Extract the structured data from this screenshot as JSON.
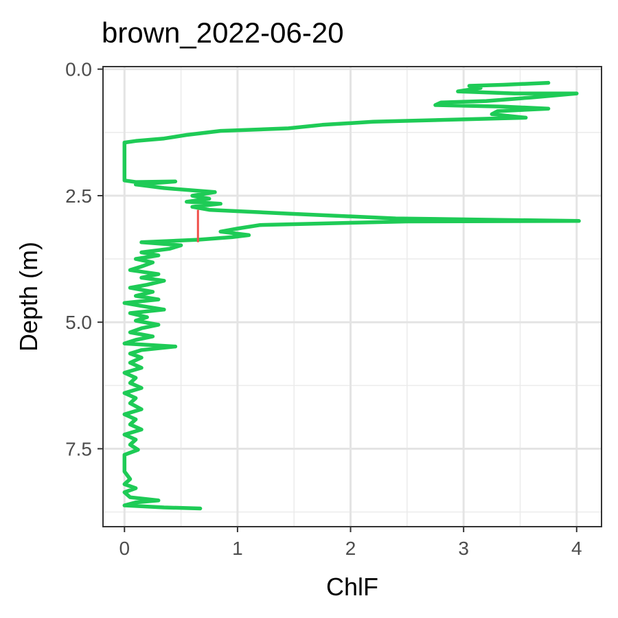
{
  "chart_data": {
    "type": "line",
    "title": "brown_2022-06-20",
    "xlabel": "ChlF",
    "ylabel": "Depth (m)",
    "xlim": [
      -0.19,
      4.22
    ],
    "ylim": [
      9.04,
      -0.05
    ],
    "y_reversed": true,
    "grid": true,
    "legend": "none",
    "x_ticks": [
      {
        "value": 0,
        "label": "0"
      },
      {
        "value": 1,
        "label": "1"
      },
      {
        "value": 2,
        "label": "2"
      },
      {
        "value": 3,
        "label": "3"
      },
      {
        "value": 4,
        "label": "4"
      }
    ],
    "y_ticks": [
      {
        "value": 0,
        "label": "0.0"
      },
      {
        "value": 2.5,
        "label": "2.5"
      },
      {
        "value": 5,
        "label": "5.0"
      },
      {
        "value": 7.5,
        "label": "7.5"
      }
    ],
    "series": [
      {
        "color": "#1ECB56",
        "points": [
          [
            3.75,
            0.27
          ],
          [
            3.35,
            0.31
          ],
          [
            3.05,
            0.33
          ],
          [
            3.15,
            0.37
          ],
          [
            2.95,
            0.44
          ],
          [
            3.45,
            0.48
          ],
          [
            4.0,
            0.48
          ],
          [
            3.6,
            0.56
          ],
          [
            3.2,
            0.63
          ],
          [
            2.8,
            0.66
          ],
          [
            2.75,
            0.71
          ],
          [
            3.35,
            0.74
          ],
          [
            3.75,
            0.78
          ],
          [
            3.3,
            0.83
          ],
          [
            3.25,
            0.89
          ],
          [
            3.55,
            0.96
          ],
          [
            2.2,
            1.04
          ],
          [
            1.75,
            1.1
          ],
          [
            1.45,
            1.17
          ],
          [
            0.85,
            1.22
          ],
          [
            0.55,
            1.3
          ],
          [
            0.35,
            1.37
          ],
          [
            0.1,
            1.42
          ],
          [
            0.0,
            1.45
          ],
          [
            0.0,
            1.8
          ],
          [
            0.0,
            2.2
          ],
          [
            0.1,
            2.23
          ],
          [
            0.45,
            2.22
          ],
          [
            0.1,
            2.28
          ],
          [
            0.35,
            2.35
          ],
          [
            0.8,
            2.43
          ],
          [
            0.6,
            2.5
          ],
          [
            0.75,
            2.56
          ],
          [
            0.55,
            2.62
          ],
          [
            0.85,
            2.66
          ],
          [
            0.6,
            2.72
          ],
          [
            0.75,
            2.78
          ],
          [
            1.5,
            2.86
          ],
          [
            2.4,
            2.95
          ],
          [
            4.02,
            3.0
          ],
          [
            2.5,
            3.01
          ],
          [
            1.2,
            3.08
          ],
          [
            1.0,
            3.15
          ],
          [
            0.85,
            3.21
          ],
          [
            1.1,
            3.28
          ],
          [
            0.95,
            3.32
          ],
          [
            0.65,
            3.37
          ],
          [
            0.15,
            3.42
          ],
          [
            0.5,
            3.48
          ],
          [
            0.4,
            3.55
          ],
          [
            0.15,
            3.62
          ],
          [
            0.3,
            3.68
          ],
          [
            0.1,
            3.75
          ],
          [
            0.25,
            3.82
          ],
          [
            0.15,
            3.9
          ],
          [
            0.05,
            3.97
          ],
          [
            0.3,
            4.05
          ],
          [
            0.15,
            4.12
          ],
          [
            0.35,
            4.18
          ],
          [
            0.2,
            4.26
          ],
          [
            0.05,
            4.32
          ],
          [
            0.25,
            4.4
          ],
          [
            0.1,
            4.48
          ],
          [
            0.3,
            4.55
          ],
          [
            0.0,
            4.62
          ],
          [
            0.15,
            4.68
          ],
          [
            0.35,
            4.75
          ],
          [
            0.05,
            4.82
          ],
          [
            0.2,
            4.9
          ],
          [
            0.1,
            4.97
          ],
          [
            0.3,
            5.05
          ],
          [
            0.15,
            5.12
          ],
          [
            0.05,
            5.2
          ],
          [
            0.25,
            5.28
          ],
          [
            0.1,
            5.35
          ],
          [
            0.0,
            5.42
          ],
          [
            0.45,
            5.48
          ],
          [
            0.15,
            5.55
          ],
          [
            0.05,
            5.62
          ],
          [
            0.15,
            5.7
          ],
          [
            0.05,
            5.8
          ],
          [
            0.15,
            5.9
          ],
          [
            0.0,
            6.0
          ],
          [
            0.1,
            6.1
          ],
          [
            0.05,
            6.2
          ],
          [
            0.15,
            6.3
          ],
          [
            0.0,
            6.4
          ],
          [
            0.1,
            6.5
          ],
          [
            0.05,
            6.6
          ],
          [
            0.15,
            6.72
          ],
          [
            0.0,
            6.82
          ],
          [
            0.1,
            6.92
          ],
          [
            0.05,
            7.02
          ],
          [
            0.15,
            7.12
          ],
          [
            0.0,
            7.22
          ],
          [
            0.1,
            7.32
          ],
          [
            0.05,
            7.42
          ],
          [
            0.12,
            7.52
          ],
          [
            0.0,
            7.62
          ],
          [
            0.0,
            7.75
          ],
          [
            0.0,
            7.95
          ],
          [
            0.05,
            8.1
          ],
          [
            0.0,
            8.2
          ],
          [
            0.1,
            8.28
          ],
          [
            0.0,
            8.36
          ],
          [
            0.05,
            8.46
          ],
          [
            0.3,
            8.52
          ],
          [
            0.1,
            8.56
          ],
          [
            0.0,
            8.62
          ],
          [
            0.35,
            8.66
          ],
          [
            0.67,
            8.68
          ]
        ]
      }
    ],
    "marker": {
      "color": "#F0504A",
      "x": 0.65,
      "y_from": 2.78,
      "y_to": 3.42
    }
  }
}
